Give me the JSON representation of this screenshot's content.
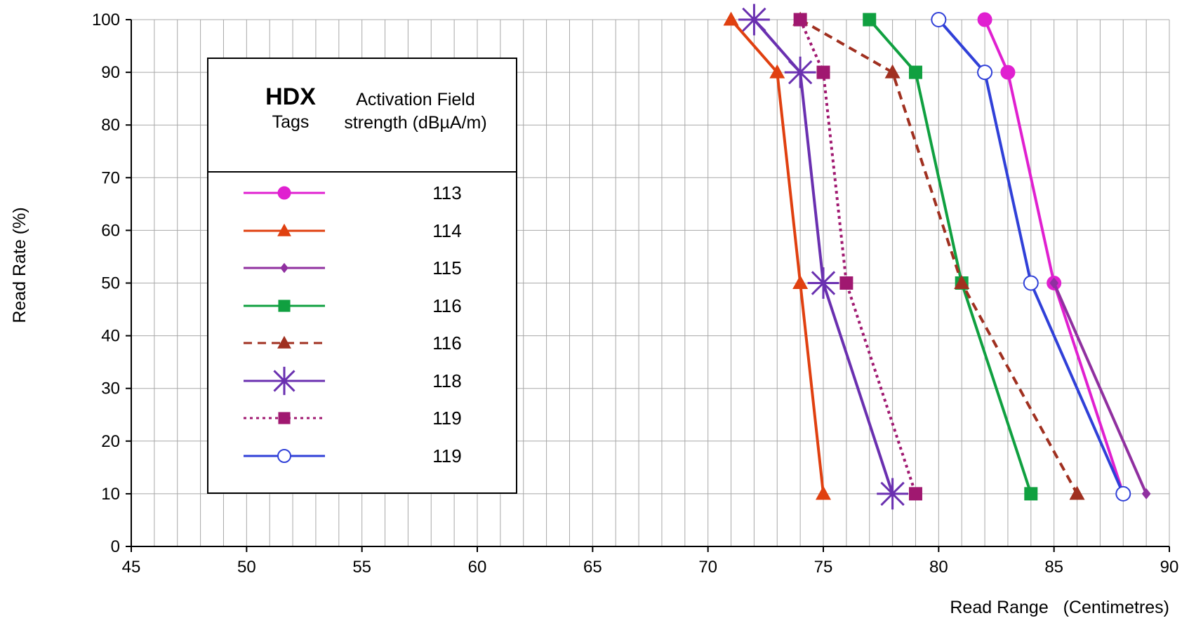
{
  "chart_data": {
    "type": "line",
    "title": "",
    "xlabel": "Read Range   (Centimetres)",
    "ylabel": "Read Rate (%)",
    "xlim": [
      45,
      90
    ],
    "ylim": [
      0,
      100
    ],
    "x_ticks": [
      45,
      50,
      55,
      60,
      65,
      70,
      75,
      80,
      85,
      90
    ],
    "y_ticks": [
      0,
      10,
      20,
      30,
      40,
      50,
      60,
      70,
      80,
      90,
      100
    ],
    "x_minor_step": 1,
    "grid": true,
    "legend": {
      "placement": "upper-left inside plot",
      "title_main": "HDX",
      "title_sub": "Tags",
      "column_header": "Activation Field strength (dBµA/m)"
    },
    "series": [
      {
        "name": "113",
        "color": "#E020D0",
        "marker": "circle",
        "dash": "solid",
        "points": [
          [
            82,
            100
          ],
          [
            83,
            90
          ],
          [
            85,
            50
          ],
          [
            88,
            10
          ]
        ]
      },
      {
        "name": "114",
        "color": "#E04010",
        "marker": "triangle",
        "dash": "solid",
        "points": [
          [
            71,
            100
          ],
          [
            73,
            90
          ],
          [
            74,
            50
          ],
          [
            75,
            10
          ]
        ]
      },
      {
        "name": "115",
        "color": "#9030A0",
        "marker": "diamond",
        "dash": "solid",
        "points": [
          [
            85,
            50
          ],
          [
            89,
            10
          ]
        ]
      },
      {
        "name": "116",
        "color": "#10A040",
        "marker": "square",
        "dash": "solid",
        "points": [
          [
            77,
            100
          ],
          [
            79,
            90
          ],
          [
            81,
            50
          ],
          [
            84,
            10
          ]
        ]
      },
      {
        "name": "116",
        "color": "#A03020",
        "marker": "triangle",
        "dash": "dashed",
        "points": [
          [
            74,
            100
          ],
          [
            78,
            90
          ],
          [
            81,
            50
          ],
          [
            86,
            10
          ]
        ]
      },
      {
        "name": "118",
        "color": "#6A30B0",
        "marker": "asterisk",
        "dash": "solid",
        "points": [
          [
            72,
            100
          ],
          [
            74,
            90
          ],
          [
            75,
            50
          ],
          [
            78,
            10
          ]
        ]
      },
      {
        "name": "119",
        "color": "#A01870",
        "marker": "square",
        "dash": "dotted",
        "points": [
          [
            74,
            100
          ],
          [
            75,
            90
          ],
          [
            76,
            50
          ],
          [
            79,
            10
          ]
        ]
      },
      {
        "name": "119",
        "color": "#3040D8",
        "marker": "open-circle",
        "dash": "solid",
        "points": [
          [
            80,
            100
          ],
          [
            82,
            90
          ],
          [
            84,
            50
          ],
          [
            88,
            10
          ]
        ]
      }
    ]
  }
}
